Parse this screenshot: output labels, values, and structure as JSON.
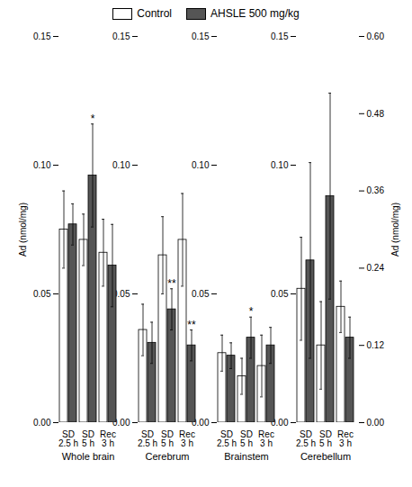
{
  "chart_data": {
    "type": "bar",
    "categories": [
      "SD\n2.5 h",
      "SD\n5 h",
      "Rec\n3 h",
      "SD\n2.5 h",
      "SD\n5 h",
      "Rec\n3 h",
      "SD\n2.5 h",
      "SD\n5 h",
      "Rec\n3 h",
      "SD\n2.5 h",
      "SD\n5 h",
      "Rec\n3 h"
    ],
    "groups": [
      "Whole brain",
      "Cerebrum",
      "Brainstem",
      "Cerebellum"
    ],
    "series": [
      {
        "name": "Control",
        "color": "#ffffff",
        "values": [
          0.075,
          0.071,
          0.066,
          0.036,
          0.065,
          0.071,
          0.027,
          0.018,
          0.022,
          0.052,
          0.03,
          0.045
        ],
        "errors": [
          0.015,
          0.01,
          0.013,
          0.01,
          0.015,
          0.018,
          0.007,
          0.007,
          0.012,
          0.02,
          0.017,
          0.01
        ]
      },
      {
        "name": "AHSLE 500 mg/kg",
        "color": "#555555",
        "values": [
          0.077,
          0.096,
          0.061,
          0.031,
          0.044,
          0.03,
          0.026,
          0.033,
          0.03,
          0.063,
          0.088,
          0.033
        ],
        "errors": [
          0.008,
          0.02,
          0.016,
          0.008,
          0.008,
          0.006,
          0.005,
          0.008,
          0.007,
          0.038,
          0.04,
          0.008
        ],
        "significance": [
          null,
          "*",
          null,
          null,
          "**",
          "**",
          null,
          "*",
          null,
          null,
          null,
          null
        ]
      }
    ],
    "ylabel": "Ad (nmol/mg)",
    "y2label": "Ad (nmol/mg)",
    "ylim": [
      0.0,
      0.15
    ],
    "yticks": [
      {
        "value": 0.0,
        "label": "0.00"
      },
      0.05,
      {
        "value": 0.1,
        "label": "0.10"
      },
      0.15
    ],
    "y2lim": [
      0.0,
      0.6
    ],
    "y2ticks": [
      {
        "value": 0.0,
        "label": "0.00"
      },
      0.12,
      0.24,
      0.36,
      0.48,
      {
        "value": 0.6,
        "label": "0.60"
      }
    ],
    "legend": "top"
  }
}
